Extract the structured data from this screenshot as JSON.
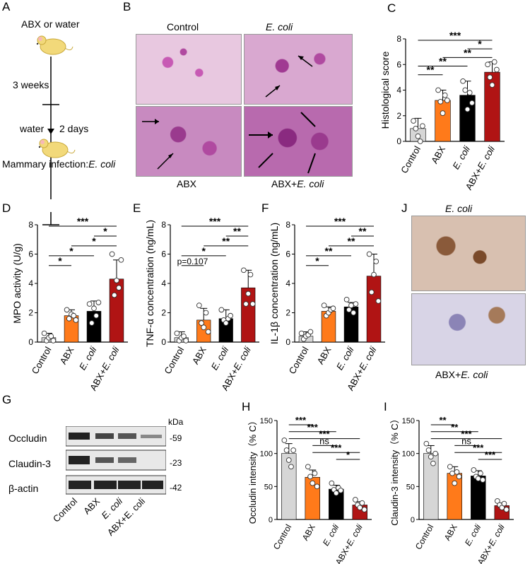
{
  "panel_letters": {
    "A": "A",
    "B": "B",
    "C": "C",
    "D": "D",
    "E": "E",
    "F": "F",
    "G": "G",
    "H": "H",
    "I": "I",
    "J": "J"
  },
  "panel_A": {
    "step1": "ABX or water",
    "step2": "3 weeks",
    "step3_left": "water",
    "step3_right": "2 days",
    "step4": "Mammary infection:",
    "step4_italic": "E. coli"
  },
  "panel_B": {
    "col1": "Control",
    "col2": "E. coli",
    "row2_col1": "ABX",
    "row2_col2_prefix": "ABX+",
    "row2_col2_italic": "E. coli"
  },
  "panel_J": {
    "top": "E. coli",
    "bottom_prefix": "ABX+",
    "bottom_italic": "E. coli"
  },
  "panel_G": {
    "kda": "kDa",
    "bands": [
      {
        "name": "Occludin",
        "kda": "-59"
      },
      {
        "name": "Claudin-3",
        "kda": "-23"
      },
      {
        "name": "β-actin",
        "kda": "-42"
      }
    ],
    "lanes": [
      "Control",
      "ABX",
      "E. coli",
      "ABX+E. coli"
    ]
  },
  "colors": {
    "control": "#d6d6d6",
    "abx": "#ff7a1a",
    "ecoli": "#000000",
    "abx_ecoli": "#b01414"
  },
  "chart_data": [
    {
      "panel": "C",
      "type": "bar",
      "categories": [
        "Control",
        "ABX",
        "E. coli",
        "ABX+E. coli"
      ],
      "values": [
        1.0,
        3.2,
        3.6,
        5.4
      ],
      "errors": [
        0.8,
        0.8,
        1.1,
        0.8
      ],
      "points": [
        [
          1.6,
          1.0,
          0.4,
          0.0,
          1.2
        ],
        [
          4.0,
          3.1,
          2.2,
          3.6,
          3.2
        ],
        [
          4.7,
          4.0,
          2.5,
          3.8,
          3.0
        ],
        [
          6.0,
          5.0,
          4.4,
          6.2,
          5.6
        ]
      ],
      "ylabel": "Histological score",
      "ylim": [
        0,
        8
      ],
      "yticks": [
        0,
        2,
        4,
        6,
        8
      ],
      "sig": [
        {
          "a": 0,
          "b": 3,
          "label": "***"
        },
        {
          "a": 2,
          "b": 3,
          "label": "*"
        },
        {
          "a": 1,
          "b": 3,
          "label": "**"
        },
        {
          "a": 0,
          "b": 2,
          "label": "**"
        },
        {
          "a": 0,
          "b": 1,
          "label": "**"
        }
      ]
    },
    {
      "panel": "D",
      "type": "bar",
      "categories": [
        "Control",
        "ABX",
        "E. coli",
        "ABX+E. coli"
      ],
      "values": [
        0.3,
        1.8,
        2.1,
        4.3
      ],
      "errors": [
        0.3,
        0.4,
        0.7,
        1.3
      ],
      "points": [
        [
          0.6,
          0.1,
          0.3,
          0.4,
          0.1
        ],
        [
          2.2,
          1.6,
          1.9,
          1.8,
          1.5
        ],
        [
          2.6,
          1.3,
          2.3,
          1.8,
          2.7
        ],
        [
          6.0,
          3.2,
          4.2,
          3.7,
          5.6
        ]
      ],
      "ylabel": "MPO activity (U/g)",
      "ylim": [
        0,
        8
      ],
      "yticks": [
        0,
        2,
        4,
        6,
        8
      ],
      "sig": [
        {
          "a": 0,
          "b": 3,
          "label": "***"
        },
        {
          "a": 2,
          "b": 3,
          "label": "*"
        },
        {
          "a": 1,
          "b": 3,
          "label": "*"
        },
        {
          "a": 0,
          "b": 2,
          "label": "*"
        },
        {
          "a": 0,
          "b": 1,
          "label": "*"
        }
      ]
    },
    {
      "panel": "E",
      "type": "bar",
      "categories": [
        "Control",
        "ABX",
        "E. coli",
        "ABX+E. coli"
      ],
      "values": [
        0.3,
        1.5,
        1.6,
        3.7
      ],
      "errors": [
        0.4,
        0.8,
        0.6,
        1.2
      ],
      "points": [
        [
          0.6,
          0.1,
          0.3,
          0.4,
          0.1
        ],
        [
          2.5,
          1.3,
          1.0,
          2.0,
          0.7
        ],
        [
          2.2,
          1.5,
          1.3,
          1.6,
          1.8
        ],
        [
          4.9,
          2.6,
          3.3,
          4.6,
          2.6
        ]
      ],
      "ylabel": "TNF-α concentration (ng/mL)",
      "ylim": [
        0,
        8
      ],
      "yticks": [
        0,
        2,
        4,
        6,
        8
      ],
      "sig": [
        {
          "a": 0,
          "b": 3,
          "label": "***"
        },
        {
          "a": 2,
          "b": 3,
          "label": "**"
        },
        {
          "a": 1,
          "b": 3,
          "label": "**"
        },
        {
          "a": 0,
          "b": 2,
          "label": "*"
        },
        {
          "a": 0,
          "b": 1,
          "label": "p=0.107"
        }
      ]
    },
    {
      "panel": "F",
      "type": "bar",
      "categories": [
        "Control",
        "ABX",
        "E. coli",
        "ABX+E. coli"
      ],
      "values": [
        0.4,
        2.1,
        2.4,
        4.5
      ],
      "errors": [
        0.3,
        0.3,
        0.3,
        1.5
      ],
      "points": [
        [
          0.6,
          0.2,
          0.4,
          0.5,
          0.7
        ],
        [
          2.5,
          1.8,
          2.0,
          2.2,
          2.3
        ],
        [
          2.9,
          2.2,
          2.5,
          2.0,
          2.6
        ],
        [
          6.0,
          3.4,
          4.6,
          5.5,
          2.8
        ]
      ],
      "ylabel": "IL-1β concentration (ng/mL)",
      "ylim": [
        0,
        8
      ],
      "yticks": [
        0,
        2,
        4,
        6,
        8
      ],
      "sig": [
        {
          "a": 0,
          "b": 3,
          "label": "***"
        },
        {
          "a": 2,
          "b": 3,
          "label": "**"
        },
        {
          "a": 1,
          "b": 3,
          "label": "**"
        },
        {
          "a": 0,
          "b": 2,
          "label": "**"
        },
        {
          "a": 0,
          "b": 1,
          "label": "*"
        }
      ]
    },
    {
      "panel": "H",
      "type": "bar",
      "categories": [
        "Control",
        "ABX",
        "E. coli",
        "ABX+E. coli"
      ],
      "values": [
        100,
        64,
        46,
        22
      ],
      "errors": [
        15,
        11,
        6,
        5
      ],
      "points": [
        [
          120,
          105,
          90,
          80,
          105
        ],
        [
          80,
          65,
          55,
          70,
          50
        ],
        [
          55,
          45,
          40,
          48,
          44
        ],
        [
          30,
          22,
          18,
          25,
          15
        ]
      ],
      "ylabel": "Occludin intensity（% C）",
      "ylim": [
        0,
        150
      ],
      "yticks": [
        0,
        50,
        100,
        150
      ],
      "sig": [
        {
          "a": 0,
          "b": 1,
          "label": "***"
        },
        {
          "a": 0,
          "b": 2,
          "label": "***"
        },
        {
          "a": 0,
          "b": 3,
          "label": "***"
        },
        {
          "a": 1,
          "b": 2,
          "label": "ns"
        },
        {
          "a": 1,
          "b": 3,
          "label": "***"
        },
        {
          "a": 2,
          "b": 3,
          "label": "*"
        }
      ]
    },
    {
      "panel": "I",
      "type": "bar",
      "categories": [
        "Control",
        "ABX",
        "E. coli",
        "ABX+E. coli"
      ],
      "values": [
        100,
        70,
        66,
        21
      ],
      "errors": [
        12,
        10,
        8,
        4
      ],
      "points": [
        [
          115,
          105,
          95,
          85,
          100
        ],
        [
          80,
          70,
          55,
          72,
          65
        ],
        [
          75,
          65,
          62,
          70,
          60
        ],
        [
          28,
          22,
          18,
          24,
          15
        ]
      ],
      "ylabel": "Claudin-3 intensity（% C）",
      "ylim": [
        0,
        150
      ],
      "yticks": [
        0,
        50,
        100,
        150
      ],
      "sig": [
        {
          "a": 0,
          "b": 1,
          "label": "**"
        },
        {
          "a": 0,
          "b": 2,
          "label": "**"
        },
        {
          "a": 0,
          "b": 3,
          "label": "***"
        },
        {
          "a": 1,
          "b": 2,
          "label": "ns"
        },
        {
          "a": 1,
          "b": 3,
          "label": "***"
        },
        {
          "a": 2,
          "b": 3,
          "label": "***"
        }
      ]
    }
  ]
}
